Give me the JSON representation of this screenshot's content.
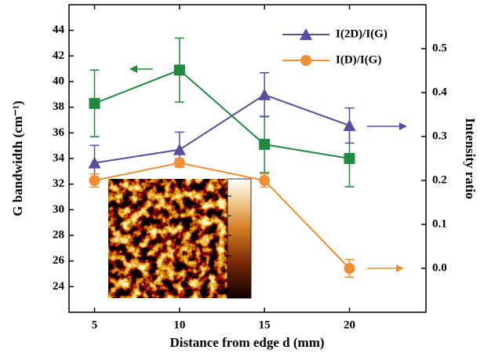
{
  "chart_data": {
    "type": "line",
    "x_label": "Distance from edge d (mm)",
    "y_label": "G bandwidth (cm⁻¹)",
    "y2_label": "Intensity ratio",
    "x": [
      5,
      10,
      15,
      20
    ],
    "xlim": [
      3.5,
      24.5
    ],
    "xticks": [
      5,
      10,
      15,
      20
    ],
    "ylim": [
      22,
      46
    ],
    "yticks": [
      24,
      26,
      28,
      30,
      32,
      34,
      36,
      38,
      40,
      42,
      44
    ],
    "y2lim": [
      -0.1,
      0.6
    ],
    "y2ticks": [
      {
        "value": 0,
        "label": "0.0"
      },
      0.1,
      0.2,
      0.3,
      0.4,
      0.5
    ],
    "legend": "upper right",
    "series": [
      {
        "color": "#1f8a3f",
        "marker": "square",
        "values": [
          38.3,
          40.9,
          35.1,
          34.0
        ],
        "errors": [
          2.6,
          2.5,
          2.2,
          2.2
        ]
      },
      {
        "name": "I(2D)/I(G)",
        "axis": "y2",
        "color": "#5a4c9f",
        "marker": "triangle",
        "values": [
          0.24,
          0.27,
          0.395,
          0.325
        ],
        "errors": [
          0.04,
          0.04,
          0.05,
          0.04
        ]
      },
      {
        "name": "I(D)/I(G)",
        "axis": "y2",
        "color": "#f08f35",
        "marker": "circle",
        "values": [
          0.2,
          0.24,
          0.2,
          0.0
        ],
        "errors": [
          0.015,
          0.01,
          0.015,
          0.02
        ]
      }
    ]
  }
}
